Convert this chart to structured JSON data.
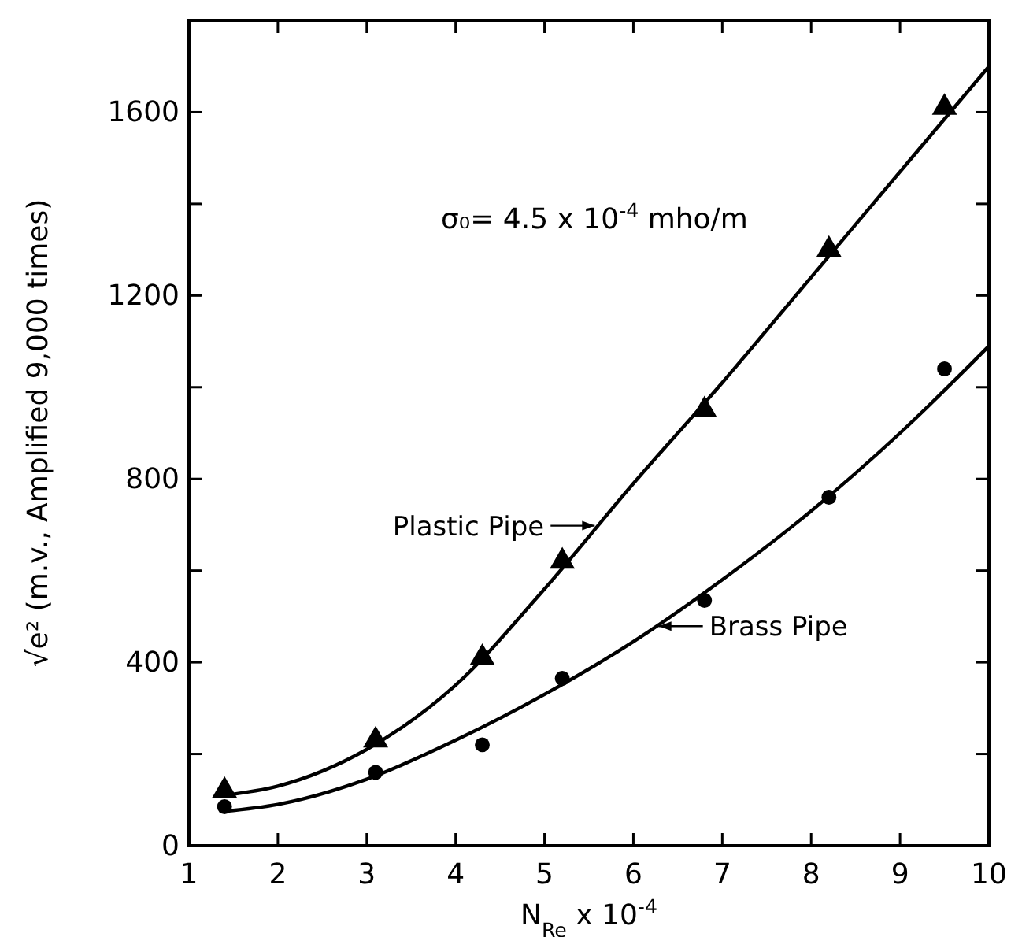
{
  "chart_data": {
    "type": "scatter",
    "xlabel": "N$_{Re}$ x 10$^{-4}$",
    "ylabel": "√e² (m.v., Amplified 9,000 times)",
    "annotations": [
      "σ₀= 4.5 x 10$^{-4}$ mho/m"
    ],
    "xlim": [
      1,
      10
    ],
    "xticks": [
      1,
      2,
      3,
      4,
      5,
      6,
      7,
      8,
      9,
      10
    ],
    "ylim": [
      0,
      1800
    ],
    "yticks": [
      0,
      {
        "value": 200,
        "label": null
      },
      400,
      {
        "value": 600,
        "label": null
      },
      800,
      {
        "value": 1000,
        "label": null
      },
      1200,
      {
        "value": 1400,
        "label": null
      },
      1600
    ],
    "grid": false,
    "series": [
      {
        "marker": "triangle",
        "color": "#000000",
        "x": [
          1.4,
          3.1,
          4.3,
          5.2,
          6.8,
          8.2,
          9.5
        ],
        "values": [
          120,
          230,
          410,
          620,
          950,
          1300,
          1610
        ]
      },
      {
        "marker": "circle",
        "color": "#000000",
        "x": [
          1.4,
          3.1,
          4.3,
          5.2,
          6.8,
          8.2,
          9.5
        ],
        "values": [
          85,
          160,
          220,
          365,
          535,
          760,
          1040
        ]
      },
      {
        "type": "line",
        "name": "Plastic Pipe",
        "color": "#000000",
        "x": [
          1.4,
          2,
          3,
          4,
          5,
          6,
          7,
          8,
          9,
          10
        ],
        "values": [
          110,
          130,
          210,
          350,
          560,
          790,
          1010,
          1240,
          1470,
          1700
        ]
      },
      {
        "type": "line",
        "name": "Brass Pipe",
        "color": "#000000",
        "x": [
          1.4,
          2,
          3,
          4,
          5,
          6,
          7,
          8,
          9,
          10
        ],
        "values": [
          75,
          90,
          145,
          230,
          330,
          445,
          580,
          730,
          900,
          1090
        ]
      }
    ]
  }
}
